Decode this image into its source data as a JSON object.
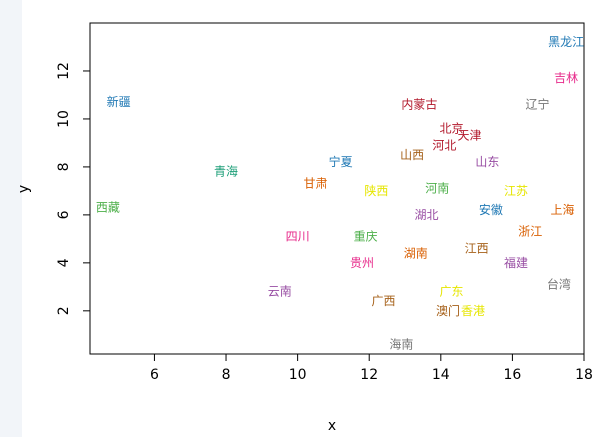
{
  "chart_data": {
    "type": "scatter",
    "title": "",
    "xlabel": "x",
    "ylabel": "y",
    "xlim": [
      4.2,
      18
    ],
    "ylim": [
      0.2,
      14.0
    ],
    "x_ticks": [
      "6",
      "8",
      "10",
      "12",
      "14",
      "16",
      "18"
    ],
    "y_ticks": [
      "2",
      "4",
      "6",
      "8",
      "10",
      "12"
    ],
    "grid": false,
    "legend": "none",
    "point_style": "text labels only",
    "points": [
      {
        "label": "黑龙江",
        "x": 17.5,
        "y": 13.2,
        "color": "#1f78b4"
      },
      {
        "label": "吉林",
        "x": 17.5,
        "y": 11.7,
        "color": "#e7298a"
      },
      {
        "label": "辽宁",
        "x": 16.7,
        "y": 10.6,
        "color": "#777777"
      },
      {
        "label": "新疆",
        "x": 5.0,
        "y": 10.7,
        "color": "#1f78b4"
      },
      {
        "label": "内蒙古",
        "x": 13.4,
        "y": 10.6,
        "color": "#b2182b"
      },
      {
        "label": "北京",
        "x": 14.3,
        "y": 9.6,
        "color": "#b2182b"
      },
      {
        "label": "天津",
        "x": 14.8,
        "y": 9.3,
        "color": "#b2182b"
      },
      {
        "label": "河北",
        "x": 14.1,
        "y": 8.9,
        "color": "#b2182b"
      },
      {
        "label": "山西",
        "x": 13.2,
        "y": 8.5,
        "color": "#a6611a"
      },
      {
        "label": "山东",
        "x": 15.3,
        "y": 8.2,
        "color": "#984ea3"
      },
      {
        "label": "宁夏",
        "x": 11.2,
        "y": 8.2,
        "color": "#1f78b4"
      },
      {
        "label": "青海",
        "x": 8.0,
        "y": 7.8,
        "color": "#1b9e77"
      },
      {
        "label": "甘肃",
        "x": 10.5,
        "y": 7.3,
        "color": "#d95f02"
      },
      {
        "label": "陕西",
        "x": 12.2,
        "y": 7.0,
        "color": "#e6e600"
      },
      {
        "label": "河南",
        "x": 13.9,
        "y": 7.1,
        "color": "#4daf4a"
      },
      {
        "label": "江苏",
        "x": 16.1,
        "y": 7.0,
        "color": "#e6e600"
      },
      {
        "label": "西藏",
        "x": 4.7,
        "y": 6.3,
        "color": "#4daf4a"
      },
      {
        "label": "安徽",
        "x": 15.4,
        "y": 6.2,
        "color": "#1f78b4"
      },
      {
        "label": "上海",
        "x": 17.4,
        "y": 6.2,
        "color": "#d95f02"
      },
      {
        "label": "湖北",
        "x": 13.6,
        "y": 6.0,
        "color": "#984ea3"
      },
      {
        "label": "四川",
        "x": 10.0,
        "y": 5.1,
        "color": "#e7298a"
      },
      {
        "label": "重庆",
        "x": 11.9,
        "y": 5.1,
        "color": "#4daf4a"
      },
      {
        "label": "浙江",
        "x": 16.5,
        "y": 5.3,
        "color": "#d95f02"
      },
      {
        "label": "江西",
        "x": 15.0,
        "y": 4.6,
        "color": "#a6611a"
      },
      {
        "label": "湖南",
        "x": 13.3,
        "y": 4.4,
        "color": "#d95f02"
      },
      {
        "label": "贵州",
        "x": 11.8,
        "y": 4.0,
        "color": "#e7298a"
      },
      {
        "label": "福建",
        "x": 16.1,
        "y": 4.0,
        "color": "#984ea3"
      },
      {
        "label": "台湾",
        "x": 17.3,
        "y": 3.1,
        "color": "#777777"
      },
      {
        "label": "云南",
        "x": 9.5,
        "y": 2.8,
        "color": "#984ea3"
      },
      {
        "label": "广西",
        "x": 12.4,
        "y": 2.4,
        "color": "#a6611a"
      },
      {
        "label": "广东",
        "x": 14.3,
        "y": 2.8,
        "color": "#e6e600"
      },
      {
        "label": "澳门",
        "x": 14.2,
        "y": 2.0,
        "color": "#a6611a"
      },
      {
        "label": "香港",
        "x": 14.9,
        "y": 2.0,
        "color": "#e6e600"
      },
      {
        "label": "海南",
        "x": 12.9,
        "y": 0.6,
        "color": "#777777"
      }
    ]
  }
}
